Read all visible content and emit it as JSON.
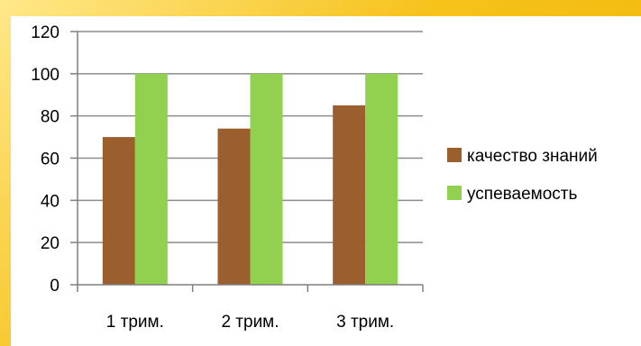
{
  "colors": {
    "frame": "#f4c21f",
    "panel": "#ffffff",
    "grid": "#8c8c8c",
    "axis": "#7f7f7f"
  },
  "chart_data": {
    "type": "bar",
    "categories": [
      "1 трим.",
      "2 трим.",
      "3 трим."
    ],
    "series": [
      {
        "name": "качество знаний",
        "values": [
          70,
          74,
          85
        ],
        "color": "#9b5f2e"
      },
      {
        "name": "успеваемость",
        "values": [
          100,
          100,
          100
        ],
        "color": "#92d050"
      }
    ],
    "ylim": [
      0,
      120
    ],
    "yticks": [
      0,
      20,
      40,
      60,
      80,
      100,
      120
    ],
    "grid": true,
    "legend_position": "right"
  }
}
